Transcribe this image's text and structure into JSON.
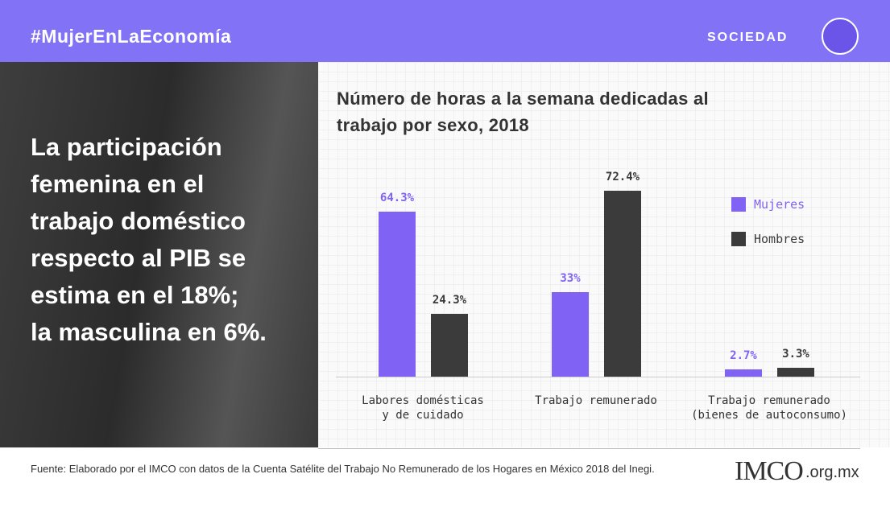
{
  "header": {
    "hashtag": "#MujerEnLaEconomía",
    "section": "SOCIEDAD"
  },
  "callout": "La participación\nfemenina en el\ntrabajo doméstico\nrespecto al PIB se\nestima en el 18%;\nla masculina en 6%.",
  "chart_data": {
    "type": "bar",
    "title": "Número de horas a la semana dedicadas al\ntrabajo por sexo, 2018",
    "categories": [
      "Labores domésticas\ny de cuidado",
      "Trabajo remunerado",
      "Trabajo remunerado\n(bienes de autoconsumo)"
    ],
    "series": [
      {
        "name": "Mujeres",
        "color": "#8063f5",
        "values": [
          64.3,
          33,
          2.7
        ],
        "value_labels": [
          "64.3%",
          "33%",
          "2.7%"
        ]
      },
      {
        "name": "Hombres",
        "color": "#3b3b3b",
        "values": [
          24.3,
          72.4,
          3.3
        ],
        "value_labels": [
          "24.3%",
          "72.4%",
          "3.3%"
        ]
      }
    ],
    "legend": "right"
  },
  "footer": {
    "source": "Fuente: Elaborado por el IMCO con datos de la Cuenta Satélite del Trabajo No Remunerado de los Hogares en México 2018 del Inegi.",
    "logo": "IMCO",
    "domain": ".org.mx"
  }
}
